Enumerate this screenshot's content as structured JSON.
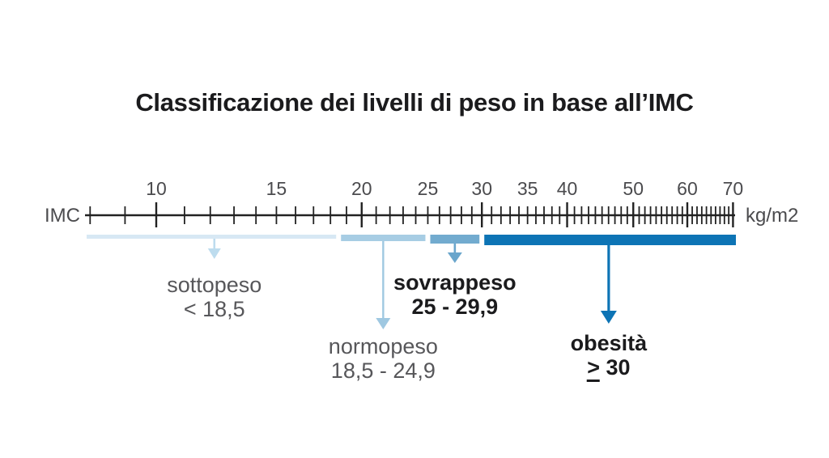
{
  "title": "Classificazione dei livelli di peso in base all’IMC",
  "axis": {
    "left_label": "IMC",
    "right_label": "kg/m2",
    "scale_type": "logarithmic",
    "tick_min": 8,
    "tick_max": 70,
    "tick_step": 1,
    "major_tick_multiple": 10,
    "labeled_ticks": [
      10,
      15,
      20,
      25,
      30,
      35,
      40,
      50,
      60,
      70
    ]
  },
  "categories": [
    {
      "name": "sottopeso",
      "range_label": "< 18,5",
      "from": 8,
      "to": 18.5,
      "bar_color": "#d7e8f4",
      "arrow_color": "#bddcee",
      "bar_thickness": 5,
      "arrow_length": "short",
      "emphasis": false
    },
    {
      "name": "normopeso",
      "range_label": "18,5 - 24,9",
      "from": 18.5,
      "to": 25,
      "bar_color": "#a7cde4",
      "arrow_color": "#9fc8e1",
      "bar_thickness": 8,
      "arrow_length": "long",
      "emphasis": false
    },
    {
      "name": "sovrappeso",
      "range_label": "25 - 29,9",
      "from": 25,
      "to": 30,
      "bar_color": "#72abcf",
      "arrow_color": "#6aa6cc",
      "bar_thickness": 11,
      "arrow_length": "short",
      "emphasis": true
    },
    {
      "name": "obesità",
      "range_label": "≥ 30",
      "from": 30,
      "to": 70.6,
      "bar_color": "#0d74b5",
      "arrow_color": "#0d74b5",
      "bar_thickness": 13,
      "arrow_length": "long",
      "emphasis": true
    }
  ],
  "colors": {
    "title_text": "#1b1b1d",
    "muted_text": "#57575a",
    "axis": "#222222",
    "background": "#ffffff"
  }
}
